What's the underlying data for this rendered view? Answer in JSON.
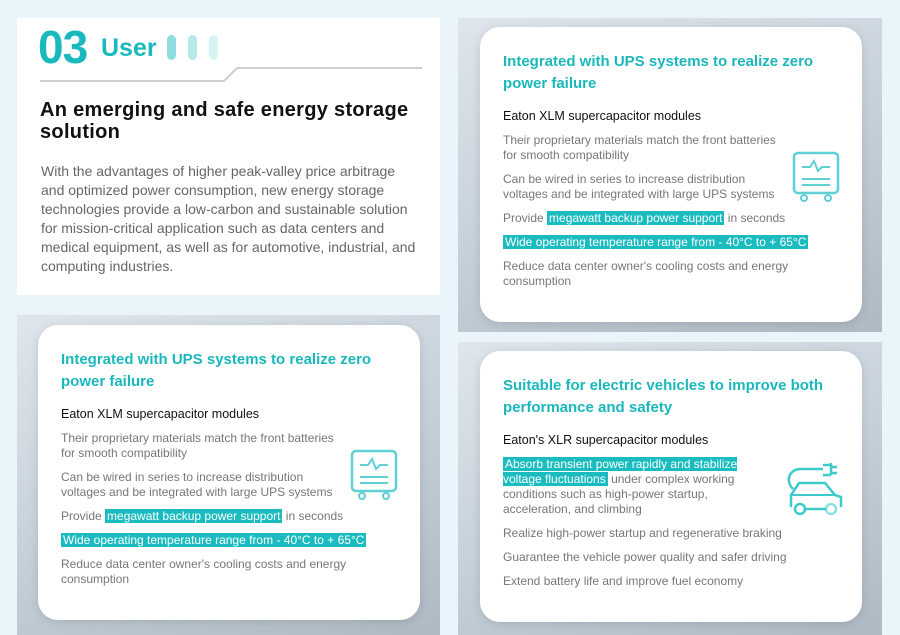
{
  "header": {
    "number": "03",
    "section": "User"
  },
  "intro": {
    "title": "An emerging and safe energy storage solution",
    "body": "With the advantages of higher peak-valley price arbitrage and optimized power consumption, new energy storage technologies provide a low-carbon and sustainable solution for mission-critical application such as data centers and medical equipment, as well as for automotive, industrial, and computing industries."
  },
  "ups_card": {
    "title": "Integrated with UPS systems to realize zero power failure",
    "subtitle": "Eaton XLM supercapacitor modules",
    "item1": "Their proprietary materials match the front batteries for smooth compatibility",
    "item2": "Can be wired in series to increase distribution voltages and be integrated with large UPS systems",
    "item3_pre": "Provide ",
    "item3_hl": "megawatt backup power support",
    "item3_post": " in seconds",
    "item4_hl": "Wide operating temperature range from - 40°C to + 65°C",
    "item5": "Reduce data center owner's cooling costs and energy consumption",
    "icon": "ups-cabinet-icon"
  },
  "ev_card": {
    "title": "Suitable for electric vehicles to improve both performance and safety",
    "subtitle": "Eaton's XLR supercapacitor modules",
    "item1_hl": "Absorb transient power rapidly and stabilize voltage fluctuations",
    "item1_post": " under complex working conditions such as high-power startup, acceleration, and climbing",
    "item2": "Realize high-power startup and regenerative braking",
    "item3": "Guarantee the vehicle power quality and safer driving",
    "item4": "Extend battery life and improve fuel economy",
    "icon": "electric-car-icon"
  },
  "colors": {
    "accent": "#19b9bd",
    "background": "#eaf4fb"
  }
}
